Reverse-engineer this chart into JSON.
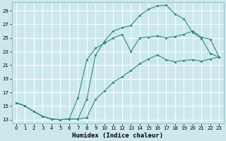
{
  "xlabel": "Humidex (Indice chaleur)",
  "bg_color": "#cce8ec",
  "grid_color": "#ffffff",
  "line_color": "#2e8b7a",
  "xlim": [
    -0.5,
    23.5
  ],
  "ylim": [
    12.5,
    30.2
  ],
  "xticks": [
    0,
    1,
    2,
    3,
    4,
    5,
    6,
    7,
    8,
    9,
    10,
    11,
    12,
    13,
    14,
    15,
    16,
    17,
    18,
    19,
    20,
    21,
    22,
    23
  ],
  "yticks": [
    13,
    15,
    17,
    19,
    21,
    23,
    25,
    27,
    29
  ],
  "line_top": {
    "x": [
      0,
      1,
      2,
      3,
      4,
      5,
      6,
      7,
      8,
      9,
      10,
      11,
      12,
      13,
      14,
      15,
      16,
      17,
      18,
      19,
      20,
      21,
      22,
      23
    ],
    "y": [
      15.5,
      15.0,
      14.2,
      13.5,
      13.1,
      13.0,
      13.1,
      13.1,
      16.0,
      22.5,
      24.5,
      26.0,
      26.5,
      26.8,
      28.3,
      29.2,
      29.7,
      29.8,
      28.5,
      27.8,
      25.8,
      24.9,
      22.7,
      22.2
    ]
  },
  "line_mid": {
    "x": [
      0,
      1,
      2,
      3,
      4,
      5,
      6,
      7,
      8,
      9,
      10,
      11,
      12,
      13,
      14,
      15,
      16,
      17,
      18,
      19,
      20,
      21,
      22,
      23
    ],
    "y": [
      15.5,
      15.0,
      14.2,
      13.5,
      13.1,
      13.0,
      13.1,
      16.2,
      21.8,
      23.5,
      24.2,
      25.0,
      25.5,
      23.0,
      25.0,
      25.1,
      25.3,
      25.0,
      25.2,
      25.5,
      26.0,
      25.1,
      24.8,
      22.2
    ]
  },
  "line_bot": {
    "x": [
      0,
      1,
      2,
      3,
      4,
      5,
      6,
      7,
      8,
      9,
      10,
      11,
      12,
      13,
      14,
      15,
      16,
      17,
      18,
      19,
      20,
      21,
      22,
      23
    ],
    "y": [
      15.5,
      15.0,
      14.2,
      13.5,
      13.1,
      13.0,
      13.1,
      13.1,
      13.3,
      16.0,
      17.2,
      18.5,
      19.3,
      20.2,
      21.2,
      21.9,
      22.5,
      21.8,
      21.5,
      21.7,
      21.8,
      21.6,
      21.9,
      22.2
    ]
  }
}
